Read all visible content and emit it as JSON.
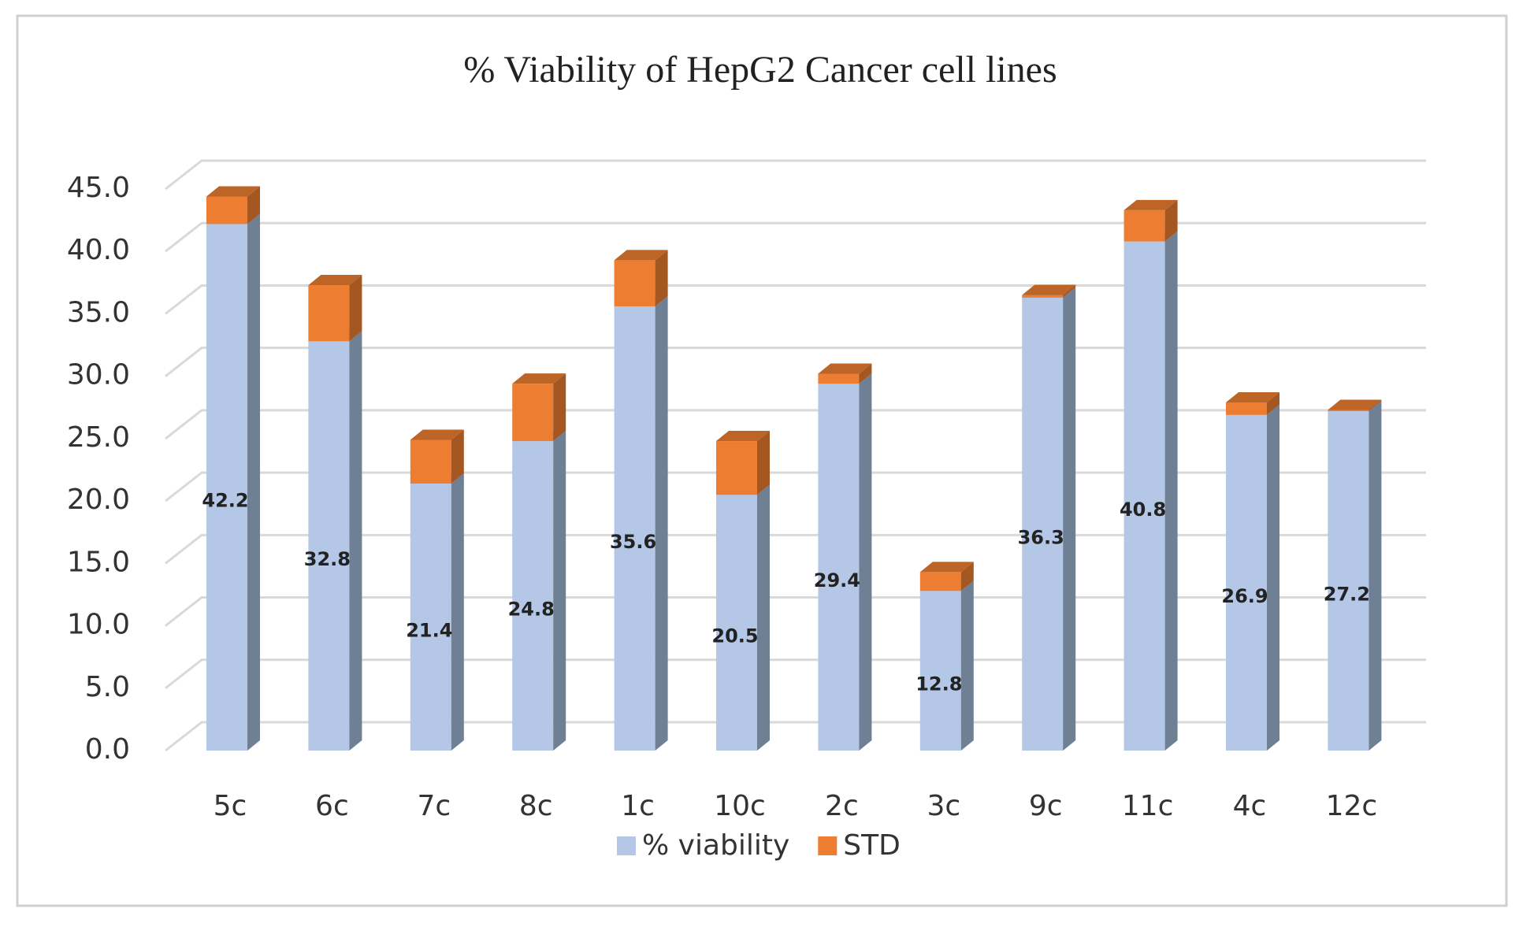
{
  "chart_data": {
    "type": "bar",
    "stacked": true,
    "title": "% Viability of HepG2 Cancer cell lines",
    "categories": [
      "5c",
      "6c",
      "7c",
      "8c",
      "1c",
      "10c",
      "2c",
      "3c",
      "9c",
      "11c",
      "4c",
      "12c"
    ],
    "series": [
      {
        "name": "% viability",
        "color": "#b4c7e7",
        "values": [
          42.2,
          32.8,
          21.4,
          24.8,
          35.6,
          20.5,
          29.4,
          12.8,
          36.3,
          40.8,
          26.9,
          27.2
        ]
      },
      {
        "name": "STD",
        "color": "#ed7d31",
        "values": [
          2.2,
          4.5,
          3.5,
          4.6,
          3.7,
          4.3,
          0.8,
          1.5,
          0.2,
          2.5,
          1.0,
          0.1
        ]
      }
    ],
    "ylim": [
      0,
      45
    ],
    "yticks": [
      {
        "value": 0,
        "label": "0.0"
      },
      {
        "value": 5,
        "label": "5.0"
      },
      {
        "value": 10,
        "label": "10.0"
      },
      {
        "value": 15,
        "label": "15.0"
      },
      {
        "value": 20,
        "label": "20.0"
      },
      {
        "value": 25,
        "label": "25.0"
      },
      {
        "value": 30,
        "label": "30.0"
      },
      {
        "value": 35,
        "label": "35.0"
      },
      {
        "value": 40,
        "label": "40.0"
      },
      {
        "value": 45,
        "label": "45.0"
      }
    ],
    "grid": true,
    "legend": "bottom"
  }
}
